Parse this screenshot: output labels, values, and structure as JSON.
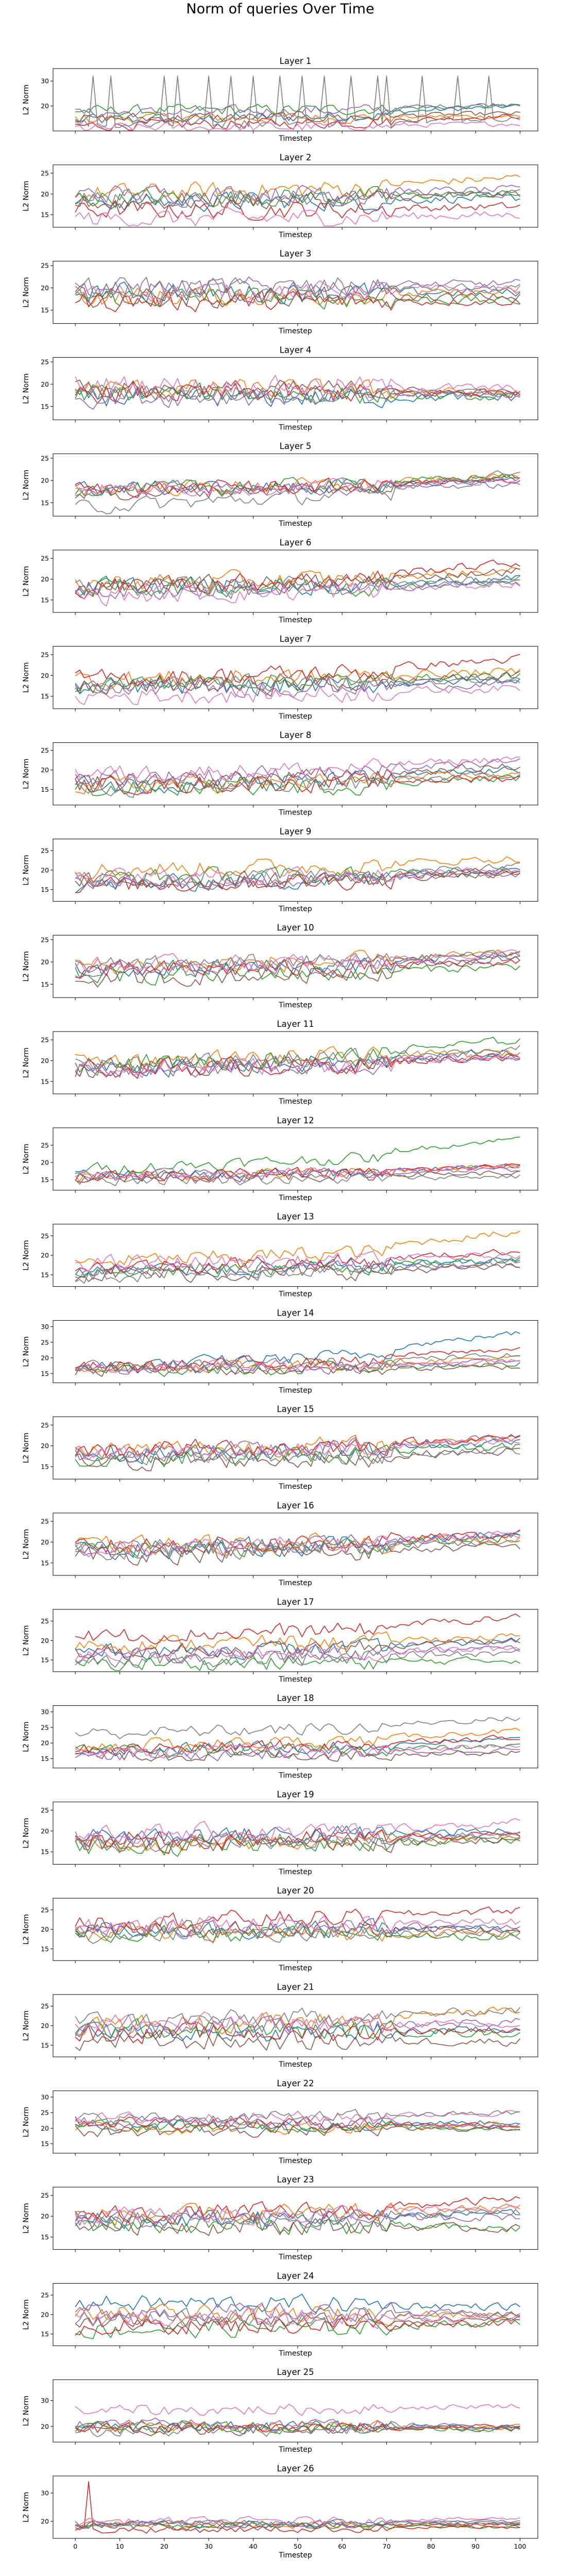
{
  "figure": {
    "suptitle": "Norm of queries Over Time"
  },
  "chart_data": {
    "type": "line",
    "n_series": 8,
    "series_colors": [
      "#1f77b4",
      "#ff7f0e",
      "#2ca02c",
      "#d62728",
      "#9467bd",
      "#8c564b",
      "#e377c2",
      "#7f7f7f"
    ],
    "x": {
      "start": 0,
      "end": 100,
      "step": 1
    },
    "xlabel": "Timestep",
    "ylabel": "L2 Norm",
    "xlim": [
      -5,
      104
    ],
    "xticks": [
      0,
      10,
      20,
      30,
      40,
      50,
      60,
      70,
      80,
      90,
      100
    ],
    "panels": [
      {
        "title": "Layer 1",
        "ylim": [
          10,
          35
        ],
        "yticks": [
          20,
          30
        ],
        "levels": [
          [
            14,
            20
          ],
          [
            15,
            16
          ],
          [
            18,
            20
          ],
          [
            12,
            16
          ],
          [
            17,
            21
          ],
          [
            15,
            17
          ],
          [
            11,
            13
          ],
          [
            13,
            15
          ]
        ],
        "spikes": [
          {
            "x": [
              4,
              8,
              20,
              23,
              30,
              35,
              40,
              46,
              51,
              56,
              62,
              68,
              70,
              78,
              86,
              93
            ],
            "series": 7,
            "height": 32
          }
        ],
        "noise": 2.0
      },
      {
        "title": "Layer 2",
        "ylim": [
          12,
          27
        ],
        "yticks": [
          15,
          20,
          25
        ],
        "levels": [
          [
            18,
            19
          ],
          [
            20,
            24
          ],
          [
            19,
            20
          ],
          [
            16,
            17
          ],
          [
            20,
            21
          ],
          [
            18,
            20
          ],
          [
            14,
            15
          ],
          [
            19,
            20
          ]
        ],
        "noise": 2.0
      },
      {
        "title": "Layer 3",
        "ylim": [
          12,
          26
        ],
        "yticks": [
          15,
          20,
          25
        ],
        "levels": [
          [
            19,
            19
          ],
          [
            18,
            19
          ],
          [
            18,
            17
          ],
          [
            17,
            17
          ],
          [
            20,
            21
          ],
          [
            18,
            18
          ],
          [
            19,
            20
          ],
          [
            20,
            20
          ]
        ],
        "noise": 2.0
      },
      {
        "title": "Layer 4",
        "ylim": [
          12,
          26
        ],
        "yticks": [
          15,
          20,
          25
        ],
        "levels": [
          [
            17,
            17
          ],
          [
            19,
            18
          ],
          [
            18,
            17
          ],
          [
            18,
            18
          ],
          [
            17,
            18
          ],
          [
            19,
            18
          ],
          [
            20,
            19
          ],
          [
            18,
            18
          ]
        ],
        "noise": 2.0
      },
      {
        "title": "Layer 5",
        "ylim": [
          12,
          26
        ],
        "yticks": [
          15,
          20,
          25
        ],
        "levels": [
          [
            18,
            20
          ],
          [
            18,
            21
          ],
          [
            18,
            21
          ],
          [
            18,
            20
          ],
          [
            18,
            19
          ],
          [
            17,
            21
          ],
          [
            18,
            20
          ],
          [
            14,
            22
          ]
        ],
        "noise": 1.5
      },
      {
        "title": "Layer 6",
        "ylim": [
          12,
          27
        ],
        "yticks": [
          15,
          20,
          25
        ],
        "levels": [
          [
            18,
            20
          ],
          [
            19,
            22
          ],
          [
            18,
            19
          ],
          [
            18,
            24
          ],
          [
            17,
            19
          ],
          [
            18,
            22
          ],
          [
            16,
            19
          ],
          [
            18,
            20
          ]
        ],
        "noise": 2.0
      },
      {
        "title": "Layer 7",
        "ylim": [
          12,
          27
        ],
        "yticks": [
          15,
          20,
          25
        ],
        "levels": [
          [
            17,
            19
          ],
          [
            19,
            21
          ],
          [
            18,
            20
          ],
          [
            19,
            24
          ],
          [
            17,
            18
          ],
          [
            17,
            20
          ],
          [
            15,
            17
          ],
          [
            18,
            19
          ]
        ],
        "noise": 2.0
      },
      {
        "title": "Layer 8",
        "ylim": [
          11,
          27
        ],
        "yticks": [
          15,
          20,
          25
        ],
        "levels": [
          [
            16,
            20
          ],
          [
            16,
            19
          ],
          [
            15,
            18
          ],
          [
            16,
            18
          ],
          [
            18,
            22
          ],
          [
            17,
            21
          ],
          [
            19,
            23
          ],
          [
            15,
            19
          ]
        ],
        "noise": 2.0
      },
      {
        "title": "Layer 9",
        "ylim": [
          12,
          28
        ],
        "yticks": [
          15,
          20,
          25
        ],
        "levels": [
          [
            16,
            21
          ],
          [
            20,
            23
          ],
          [
            18,
            20
          ],
          [
            16,
            20
          ],
          [
            17,
            19
          ],
          [
            17,
            19
          ],
          [
            18,
            20
          ],
          [
            17,
            21
          ]
        ],
        "noise": 2.0
      },
      {
        "title": "Layer 10",
        "ylim": [
          12,
          26
        ],
        "yticks": [
          15,
          20,
          25
        ],
        "levels": [
          [
            18,
            22
          ],
          [
            19,
            22
          ],
          [
            17,
            19
          ],
          [
            18,
            20
          ],
          [
            18,
            21
          ],
          [
            16,
            21
          ],
          [
            19,
            22
          ],
          [
            19,
            22
          ]
        ],
        "noise": 1.8
      },
      {
        "title": "Layer 11",
        "ylim": [
          12,
          27
        ],
        "yticks": [
          15,
          20,
          25
        ],
        "levels": [
          [
            18,
            22
          ],
          [
            20,
            22
          ],
          [
            19,
            25
          ],
          [
            18,
            21
          ],
          [
            18,
            21
          ],
          [
            18,
            21
          ],
          [
            18,
            21
          ],
          [
            19,
            23
          ]
        ],
        "noise": 2.0
      },
      {
        "title": "Layer 12",
        "ylim": [
          12,
          30
        ],
        "yticks": [
          15,
          20,
          25
        ],
        "levels": [
          [
            16,
            19
          ],
          [
            16,
            19
          ],
          [
            18,
            27
          ],
          [
            16,
            19
          ],
          [
            16,
            18
          ],
          [
            16,
            17
          ],
          [
            16,
            19
          ],
          [
            15,
            16
          ]
        ],
        "noise": 1.5
      },
      {
        "title": "Layer 13",
        "ylim": [
          12,
          28
        ],
        "yticks": [
          15,
          20,
          25
        ],
        "levels": [
          [
            16,
            19
          ],
          [
            18,
            26
          ],
          [
            16,
            19
          ],
          [
            17,
            21
          ],
          [
            16,
            18
          ],
          [
            15,
            17
          ],
          [
            18,
            20
          ],
          [
            15,
            18
          ]
        ],
        "noise": 1.8
      },
      {
        "title": "Layer 14",
        "ylim": [
          12,
          32
        ],
        "yticks": [
          15,
          20,
          25,
          30
        ],
        "levels": [
          [
            17,
            28
          ],
          [
            17,
            20
          ],
          [
            16,
            18
          ],
          [
            17,
            23
          ],
          [
            16,
            19
          ],
          [
            16,
            17
          ],
          [
            17,
            19
          ],
          [
            17,
            21
          ]
        ],
        "noise": 1.8
      },
      {
        "title": "Layer 15",
        "ylim": [
          12,
          27
        ],
        "yticks": [
          15,
          20,
          25
        ],
        "levels": [
          [
            18,
            21
          ],
          [
            19,
            22
          ],
          [
            17,
            20
          ],
          [
            19,
            22
          ],
          [
            18,
            22
          ],
          [
            16,
            19
          ],
          [
            18,
            21
          ],
          [
            17,
            19
          ]
        ],
        "noise": 2.0
      },
      {
        "title": "Layer 16",
        "ylim": [
          12,
          27
        ],
        "yticks": [
          15,
          20,
          25
        ],
        "levels": [
          [
            18,
            22
          ],
          [
            19,
            21
          ],
          [
            18,
            21
          ],
          [
            19,
            22
          ],
          [
            18,
            22
          ],
          [
            17,
            19
          ],
          [
            18,
            22
          ],
          [
            18,
            20
          ]
        ],
        "noise": 2.0
      },
      {
        "title": "Layer 17",
        "ylim": [
          12,
          28
        ],
        "yticks": [
          15,
          20,
          25
        ],
        "levels": [
          [
            17,
            20
          ],
          [
            19,
            21
          ],
          [
            14,
            15
          ],
          [
            21,
            26
          ],
          [
            16,
            18
          ],
          [
            17,
            20
          ],
          [
            16,
            18
          ],
          [
            15,
            17
          ]
        ],
        "noise": 1.8
      },
      {
        "title": "Layer 18",
        "ylim": [
          12,
          32
        ],
        "yticks": [
          15,
          20,
          25,
          30
        ],
        "levels": [
          [
            18,
            21
          ],
          [
            19,
            24
          ],
          [
            17,
            19
          ],
          [
            18,
            22
          ],
          [
            16,
            18
          ],
          [
            16,
            17
          ],
          [
            17,
            19
          ],
          [
            23,
            28
          ]
        ],
        "noise": 1.8
      },
      {
        "title": "Layer 19",
        "ylim": [
          12,
          27
        ],
        "yticks": [
          15,
          20,
          25
        ],
        "levels": [
          [
            19,
            20
          ],
          [
            17,
            19
          ],
          [
            16,
            18
          ],
          [
            18,
            19
          ],
          [
            18,
            19
          ],
          [
            17,
            18
          ],
          [
            19,
            22
          ],
          [
            17,
            19
          ]
        ],
        "noise": 2.0
      },
      {
        "title": "Layer 20",
        "ylim": [
          12,
          28
        ],
        "yticks": [
          15,
          20,
          25
        ],
        "levels": [
          [
            20,
            20
          ],
          [
            19,
            19
          ],
          [
            19,
            18
          ],
          [
            22,
            25
          ],
          [
            20,
            21
          ],
          [
            20,
            20
          ],
          [
            21,
            22
          ],
          [
            19,
            19
          ]
        ],
        "noise": 2.0
      },
      {
        "title": "Layer 21",
        "ylim": [
          12,
          28
        ],
        "yticks": [
          15,
          20,
          25
        ],
        "levels": [
          [
            18,
            19
          ],
          [
            20,
            24
          ],
          [
            19,
            18
          ],
          [
            18,
            19
          ],
          [
            19,
            21
          ],
          [
            16,
            16
          ],
          [
            21,
            20
          ],
          [
            21,
            24
          ]
        ],
        "noise": 2.2
      },
      {
        "title": "Layer 22",
        "ylim": [
          12,
          32
        ],
        "yticks": [
          15,
          20,
          25,
          30
        ],
        "levels": [
          [
            21,
            22
          ],
          [
            20,
            21
          ],
          [
            21,
            20
          ],
          [
            22,
            21
          ],
          [
            22,
            21
          ],
          [
            19,
            20
          ],
          [
            23,
            25
          ],
          [
            23,
            25
          ]
        ],
        "noise": 1.8
      },
      {
        "title": "Layer 23",
        "ylim": [
          12,
          27
        ],
        "yticks": [
          15,
          20,
          25
        ],
        "levels": [
          [
            19,
            21
          ],
          [
            20,
            22
          ],
          [
            18,
            17
          ],
          [
            20,
            24
          ],
          [
            19,
            20
          ],
          [
            18,
            17
          ],
          [
            20,
            22
          ],
          [
            19,
            21
          ]
        ],
        "noise": 2.0
      },
      {
        "title": "Layer 24",
        "ylim": [
          12,
          28
        ],
        "yticks": [
          15,
          20,
          25
        ],
        "levels": [
          [
            23,
            22
          ],
          [
            20,
            20
          ],
          [
            16,
            18
          ],
          [
            17,
            18
          ],
          [
            21,
            20
          ],
          [
            18,
            19
          ],
          [
            19,
            19
          ],
          [
            19,
            20
          ]
        ],
        "noise": 2.0
      },
      {
        "title": "Layer 25",
        "ylim": [
          14,
          38
        ],
        "yticks": [
          20,
          30
        ],
        "levels": [
          [
            20,
            20
          ],
          [
            20,
            20
          ],
          [
            20,
            19
          ],
          [
            19,
            20
          ],
          [
            21,
            20
          ],
          [
            19,
            19
          ],
          [
            26,
            28
          ],
          [
            18,
            20
          ]
        ],
        "noise": 2.0
      },
      {
        "title": "Layer 26",
        "ylim": [
          14,
          36
        ],
        "yticks": [
          20,
          30
        ],
        "levels": [
          [
            19,
            19
          ],
          [
            19,
            19
          ],
          [
            19,
            18
          ],
          [
            17,
            18
          ],
          [
            19,
            20
          ],
          [
            18,
            19
          ],
          [
            20,
            21
          ],
          [
            19,
            20
          ]
        ],
        "spikes": [
          {
            "x": [
              3
            ],
            "series": 3,
            "height": 34
          }
        ],
        "noise": 1.2
      }
    ]
  }
}
